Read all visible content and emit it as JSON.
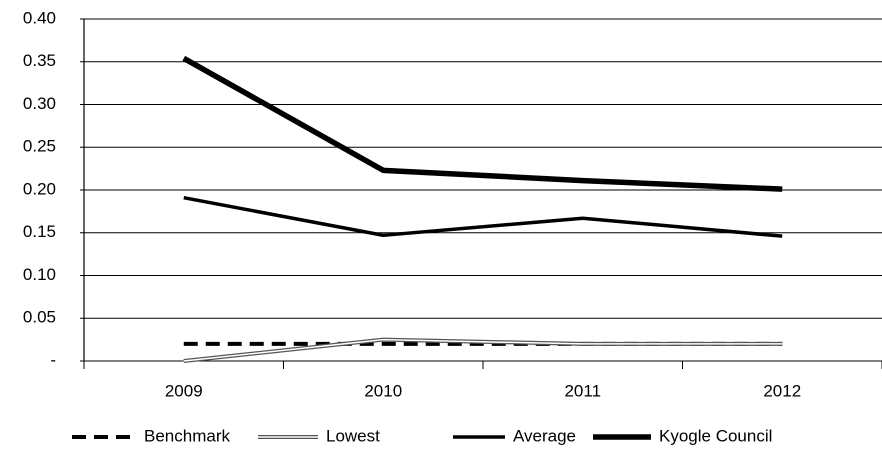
{
  "chart_data": {
    "type": "line",
    "categories": [
      "2009",
      "2010",
      "2011",
      "2012"
    ],
    "series": [
      {
        "name": "Benchmark",
        "color": "#000000",
        "line_style": "dashed",
        "values": [
          0.02,
          0.02,
          0.02,
          0.02
        ]
      },
      {
        "name": "Lowest",
        "color": "#000000",
        "line_style": "double",
        "values": [
          0,
          0.025,
          0.02,
          0.02
        ]
      },
      {
        "name": "Average",
        "color": "#000000",
        "line_style": "solid",
        "values": [
          0.191,
          0.147,
          0.167,
          0.146
        ]
      },
      {
        "name": "Kyogle Council",
        "color": "#000000",
        "line_style": "bold",
        "values": [
          0.354,
          0.223,
          0.211,
          0.201
        ]
      }
    ],
    "ylim": [
      0,
      0.4
    ],
    "yticks": [
      {
        "value": 0,
        "label": "-"
      },
      {
        "value": 0.05,
        "label": "0.05"
      },
      {
        "value": 0.1,
        "label": "0.10"
      },
      {
        "value": 0.15,
        "label": "0.15"
      },
      {
        "value": 0.2,
        "label": "0.20"
      },
      {
        "value": 0.25,
        "label": "0.25"
      },
      {
        "value": 0.3,
        "label": "0.30"
      },
      {
        "value": 0.35,
        "label": "0.35"
      },
      {
        "value": 0.4,
        "label": "0.40"
      }
    ],
    "grid": true,
    "legend": "bottom"
  }
}
